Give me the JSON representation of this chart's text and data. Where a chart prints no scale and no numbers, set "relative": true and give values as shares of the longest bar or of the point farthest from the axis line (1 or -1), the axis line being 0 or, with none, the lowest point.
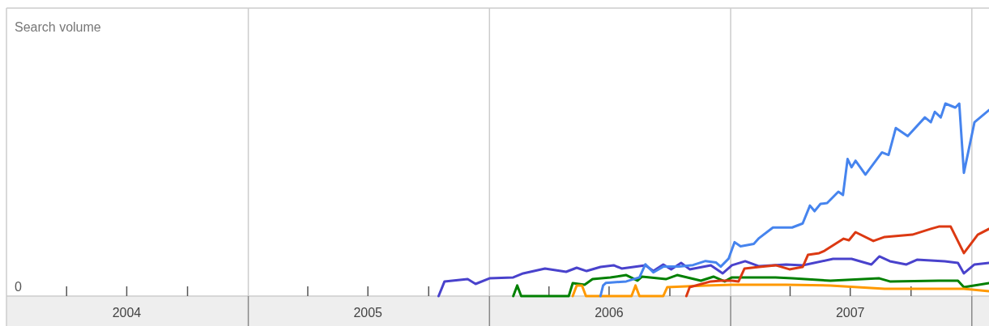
{
  "chart_data": {
    "type": "line",
    "relative": true,
    "grid": "x",
    "line_style": "solid",
    "marker": "none",
    "xlim": [
      "2004-01-01",
      "2008-01-27"
    ],
    "xticks": [
      {
        "value": "2004-04-01",
        "label": null
      },
      {
        "value": "2004-07-01",
        "label": "2004"
      },
      {
        "value": "2004-10-01",
        "label": null
      },
      {
        "value": "2005-01-01",
        "label": null
      },
      {
        "value": "2005-04-01",
        "label": null
      },
      {
        "value": "2005-07-01",
        "label": "2005"
      },
      {
        "value": "2005-10-01",
        "label": null
      },
      {
        "value": "2006-01-01",
        "label": null
      },
      {
        "value": "2006-04-01",
        "label": null
      },
      {
        "value": "2006-07-01",
        "label": "2006"
      },
      {
        "value": "2006-10-01",
        "label": null
      },
      {
        "value": "2007-01-01",
        "label": null
      },
      {
        "value": "2007-04-01",
        "label": null
      },
      {
        "value": "2007-07-01",
        "label": "2007"
      },
      {
        "value": "2007-10-01",
        "label": null
      },
      {
        "value": "2008-01-01",
        "label": null
      }
    ],
    "annotations": [
      "Search volume",
      "0"
    ],
    "series": [
      {
        "color": "#4942cc",
        "x": [
          "2005-10-16",
          "2005-10-25",
          "2005-11-29",
          "2005-12-11",
          "2006-01-01",
          "2006-02-06",
          "2006-02-21",
          "2006-03-26",
          "2006-04-27",
          "2006-05-13",
          "2006-05-28",
          "2006-06-18",
          "2006-07-08",
          "2006-07-20",
          "2006-08-25",
          "2006-09-06",
          "2006-09-21",
          "2006-10-03",
          "2006-10-18",
          "2006-10-31",
          "2006-12-02",
          "2006-12-20",
          "2007-01-03",
          "2007-01-23",
          "2007-02-13",
          "2007-03-26",
          "2007-04-20",
          "2007-06-05",
          "2007-07-03",
          "2007-08-02",
          "2007-08-14",
          "2007-08-30",
          "2007-09-24",
          "2007-10-10",
          "2007-10-31",
          "2007-11-21",
          "2007-12-11",
          "2007-12-20",
          "2008-01-05",
          "2008-01-27"
        ],
        "values": [
          0,
          0.076,
          0.088,
          0.063,
          0.092,
          0.097,
          0.118,
          0.143,
          0.126,
          0.147,
          0.13,
          0.151,
          0.16,
          0.143,
          0.16,
          0.13,
          0.164,
          0.139,
          0.172,
          0.139,
          0.16,
          0.118,
          0.16,
          0.181,
          0.155,
          0.164,
          0.16,
          0.193,
          0.193,
          0.164,
          0.206,
          0.181,
          0.164,
          0.189,
          0.185,
          0.181,
          0.172,
          0.118,
          0.164,
          0.172
        ]
      },
      {
        "color": "#008000",
        "x": [
          "2006-02-06",
          "2006-02-12",
          "2006-02-18",
          "2006-05-01",
          "2006-05-07",
          "2006-05-25",
          "2006-06-06",
          "2006-07-03",
          "2006-07-27",
          "2006-08-13",
          "2006-08-20",
          "2006-09-25",
          "2006-10-12",
          "2006-11-17",
          "2006-12-06",
          "2006-12-23",
          "2007-01-03",
          "2007-02-13",
          "2007-03-10",
          "2007-04-04",
          "2007-06-01",
          "2007-08-14",
          "2007-08-30",
          "2007-11-12",
          "2007-12-11",
          "2007-12-20",
          "2008-01-27"
        ],
        "values": [
          0,
          0.055,
          0,
          0,
          0.067,
          0.059,
          0.088,
          0.097,
          0.109,
          0.08,
          0.101,
          0.088,
          0.109,
          0.08,
          0.101,
          0.076,
          0.097,
          0.097,
          0.097,
          0.092,
          0.08,
          0.092,
          0.076,
          0.08,
          0.08,
          0.046,
          0.067
        ]
      },
      {
        "color": "#ff9900",
        "x": [
          "2006-05-07",
          "2006-05-13",
          "2006-05-21",
          "2006-05-27",
          "2006-08-04",
          "2006-08-10",
          "2006-08-16",
          "2006-09-21",
          "2006-09-27",
          "2006-11-24",
          "2007-01-03",
          "2007-03-26",
          "2007-06-01",
          "2007-08-22",
          "2007-11-12",
          "2007-12-20",
          "2008-01-27"
        ],
        "values": [
          0,
          0.055,
          0.055,
          0,
          0,
          0.055,
          0,
          0,
          0.046,
          0.055,
          0.059,
          0.059,
          0.055,
          0.038,
          0.038,
          0.038,
          0.025
        ]
      },
      {
        "color": "#dc3912",
        "x": [
          "2006-10-26",
          "2006-10-31",
          "2006-12-02",
          "2006-12-17",
          "2007-01-03",
          "2007-01-13",
          "2007-01-22",
          "2007-02-13",
          "2007-03-10",
          "2007-03-31",
          "2007-04-20",
          "2007-04-28",
          "2007-05-15",
          "2007-05-23",
          "2007-06-21",
          "2007-06-29",
          "2007-07-09",
          "2007-08-05",
          "2007-08-22",
          "2007-10-03",
          "2007-10-31",
          "2007-11-12",
          "2007-11-30",
          "2007-12-20",
          "2008-01-10",
          "2008-01-27"
        ],
        "values": [
          0,
          0.046,
          0.076,
          0.08,
          0.08,
          0.076,
          0.143,
          0.151,
          0.16,
          0.139,
          0.151,
          0.214,
          0.223,
          0.235,
          0.298,
          0.29,
          0.332,
          0.286,
          0.307,
          0.319,
          0.349,
          0.361,
          0.361,
          0.223,
          0.319,
          0.349
        ]
      },
      {
        "color": "#4684ee",
        "x": [
          "2006-06-18",
          "2006-06-22",
          "2006-06-26",
          "2006-07-27",
          "2006-08-16",
          "2006-08-25",
          "2006-09-06",
          "2006-09-21",
          "2006-10-15",
          "2006-11-05",
          "2006-11-24",
          "2006-12-10",
          "2006-12-17",
          "2006-12-29",
          "2007-01-07",
          "2007-01-16",
          "2007-02-05",
          "2007-02-13",
          "2007-03-06",
          "2007-04-04",
          "2007-04-20",
          "2007-05-01",
          "2007-05-08",
          "2007-05-17",
          "2007-05-27",
          "2007-06-13",
          "2007-06-20",
          "2007-06-27",
          "2007-07-03",
          "2007-07-09",
          "2007-07-24",
          "2007-08-18",
          "2007-08-28",
          "2007-09-08",
          "2007-09-26",
          "2007-10-22",
          "2007-10-31",
          "2007-11-06",
          "2007-11-15",
          "2007-11-22",
          "2007-12-07",
          "2007-12-13",
          "2007-12-20",
          "2008-01-05",
          "2008-01-27"
        ],
        "values": [
          0,
          0.055,
          0.068,
          0.076,
          0.097,
          0.165,
          0.123,
          0.153,
          0.153,
          0.161,
          0.182,
          0.174,
          0.153,
          0.195,
          0.28,
          0.258,
          0.271,
          0.301,
          0.356,
          0.356,
          0.377,
          0.47,
          0.441,
          0.479,
          0.483,
          0.542,
          0.525,
          0.712,
          0.669,
          0.703,
          0.631,
          0.746,
          0.733,
          0.873,
          0.831,
          0.928,
          0.903,
          0.957,
          0.928,
          1,
          0.979,
          1,
          0.64,
          0.903,
          0.966
        ]
      }
    ]
  }
}
